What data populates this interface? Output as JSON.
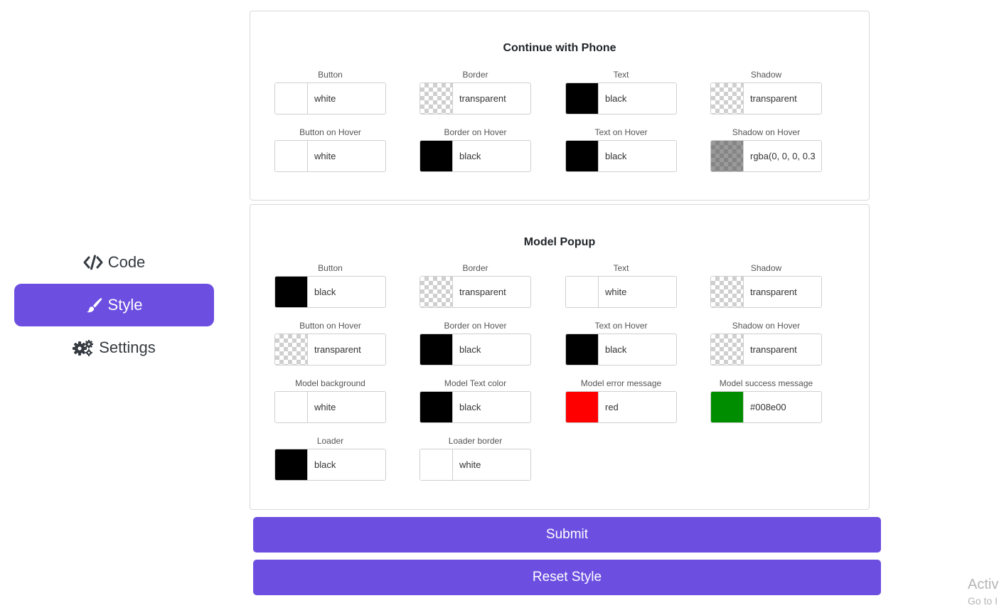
{
  "sidebar": {
    "items": [
      {
        "label": "Code",
        "icon": "code-icon",
        "active": false
      },
      {
        "label": "Style",
        "icon": "paintbrush-icon",
        "active": true
      },
      {
        "label": "Settings",
        "icon": "cogs-icon",
        "active": false
      }
    ]
  },
  "phone_section": {
    "title": "Continue with Phone",
    "fields": [
      {
        "label": "Button",
        "value": "white",
        "swatch": "#ffffff"
      },
      {
        "label": "Border",
        "value": "transparent",
        "swatch": "transparent"
      },
      {
        "label": "Text",
        "value": "black",
        "swatch": "#000000"
      },
      {
        "label": "Shadow",
        "value": "transparent",
        "swatch": "transparent"
      },
      {
        "label": "Button on Hover",
        "value": "white",
        "swatch": "#ffffff"
      },
      {
        "label": "Border on Hover",
        "value": "black",
        "swatch": "#000000"
      },
      {
        "label": "Text on Hover",
        "value": "black",
        "swatch": "#000000"
      },
      {
        "label": "Shadow on Hover",
        "value": "rgba(0, 0, 0, 0.3",
        "swatch": "rgba(0,0,0,0.3)"
      }
    ]
  },
  "popup_section": {
    "title": "Model Popup",
    "fields": [
      {
        "label": "Button",
        "value": "black",
        "swatch": "#000000"
      },
      {
        "label": "Border",
        "value": "transparent",
        "swatch": "transparent"
      },
      {
        "label": "Text",
        "value": "white",
        "swatch": "#ffffff"
      },
      {
        "label": "Shadow",
        "value": "transparent",
        "swatch": "transparent"
      },
      {
        "label": "Button on Hover",
        "value": "transparent",
        "swatch": "transparent"
      },
      {
        "label": "Border on Hover",
        "value": "black",
        "swatch": "#000000"
      },
      {
        "label": "Text on Hover",
        "value": "black",
        "swatch": "#000000"
      },
      {
        "label": "Shadow on Hover",
        "value": "transparent",
        "swatch": "transparent"
      },
      {
        "label": "Model background",
        "value": "white",
        "swatch": "#ffffff"
      },
      {
        "label": "Model Text color",
        "value": "black",
        "swatch": "#000000"
      },
      {
        "label": "Model error message",
        "value": "red",
        "swatch": "#ff0000"
      },
      {
        "label": "Model success message",
        "value": "#008e00",
        "swatch": "#008e00"
      },
      {
        "label": "Loader",
        "value": "black",
        "swatch": "#000000"
      },
      {
        "label": "Loader border",
        "value": "white",
        "swatch": "#ffffff"
      }
    ]
  },
  "actions": {
    "submit_label": "Submit",
    "reset_label": "Reset Style"
  },
  "watermark": {
    "line1": "Activ",
    "line2": "Go to I"
  },
  "colors": {
    "accent": "#6c4fe0"
  }
}
